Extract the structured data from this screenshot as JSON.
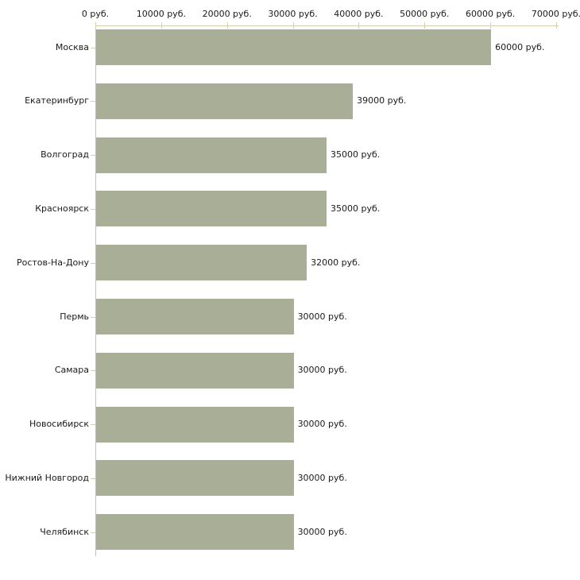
{
  "chart_data": {
    "type": "bar",
    "orientation": "horizontal",
    "unit": "руб.",
    "categories": [
      "Москва",
      "Екатеринбург",
      "Волгоград",
      "Красноярск",
      "Ростов-На-Дону",
      "Пермь",
      "Самара",
      "Новосибирск",
      "Нижний Новгород",
      "Челябинск"
    ],
    "values": [
      60000,
      39000,
      35000,
      35000,
      32000,
      30000,
      30000,
      30000,
      30000,
      30000
    ],
    "value_labels": [
      "60000 руб.",
      "39000 руб.",
      "35000 руб.",
      "35000 руб.",
      "32000 руб.",
      "30000 руб.",
      "30000 руб.",
      "30000 руб.",
      "30000 руб.",
      "30000 руб."
    ],
    "x_axis": {
      "position": "top",
      "range": [
        0,
        70000
      ],
      "ticks": [
        0,
        10000,
        20000,
        30000,
        40000,
        50000,
        60000,
        70000
      ],
      "tick_labels": [
        "0 руб.",
        "10000 руб.",
        "20000 руб.",
        "30000 руб.",
        "40000 руб.",
        "50000 руб.",
        "60000 руб.",
        "70000 руб."
      ]
    },
    "grid": false,
    "legend": false,
    "colors": {
      "bar": "#a9af97",
      "x_axis_line": "#d4d0ae",
      "y_axis_line": "#c0c0c0",
      "text": "#1a1a1a",
      "background": "#ffffff"
    }
  }
}
